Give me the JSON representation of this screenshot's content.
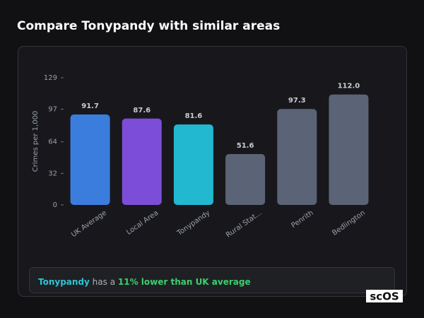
{
  "chart_data": {
    "type": "bar",
    "title": "Compare Tonypandy with similar areas",
    "y_label": "Crimes per 1,000",
    "categories": [
      "UK Average",
      "Local Area",
      "Tonypandy",
      "Rural Stat...",
      "Penrith",
      "Bedlington"
    ],
    "values": [
      91.7,
      87.6,
      81.6,
      51.6,
      97.3,
      112.0
    ],
    "value_labels": [
      "91.7",
      "87.6",
      "81.6",
      "51.6",
      "97.3",
      "112.0"
    ],
    "colors": [
      "#3b7ddd",
      "#7c4dd8",
      "#22b8d0",
      "#5b6476",
      "#5b6476",
      "#5b6476"
    ],
    "ylim": [
      0,
      129
    ],
    "yticks": [
      0,
      32,
      64,
      97,
      129
    ]
  },
  "summary": {
    "area": "Tonypandy",
    "text": "has a",
    "highlight": "11% lower than UK average"
  },
  "logo": "scOS"
}
